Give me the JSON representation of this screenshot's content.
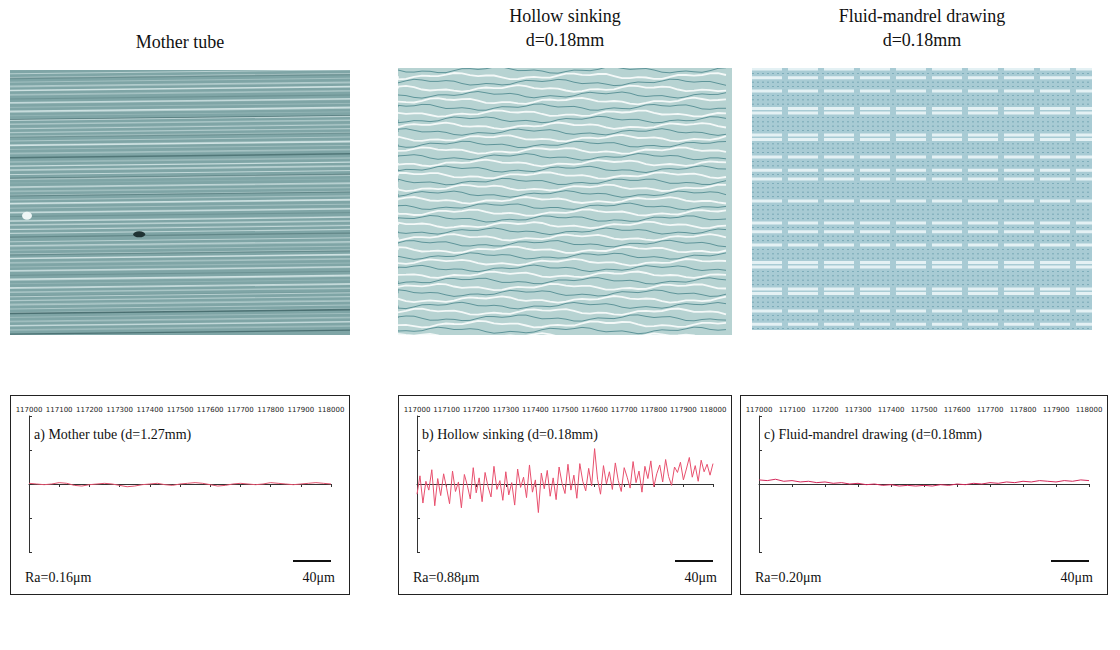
{
  "columns": [
    {
      "heading": "Mother tube"
    },
    {
      "heading": "Hollow sinking",
      "subheading": "d=0.18mm"
    },
    {
      "heading": "Fluid-mandrel drawing",
      "subheading": "d=0.18mm"
    }
  ],
  "chart_data": [
    {
      "type": "line",
      "title": "a) Mother tube (d=1.27mm)",
      "color": "#e0506c",
      "x": [
        117000,
        117025,
        117050,
        117075,
        117100,
        117125,
        117150,
        117175,
        117200,
        117225,
        117250,
        117275,
        117300,
        117325,
        117350,
        117375,
        117400,
        117425,
        117450,
        117475,
        117500,
        117525,
        117550,
        117575,
        117600,
        117625,
        117650,
        117675,
        117700,
        117725,
        117750,
        117775,
        117800,
        117825,
        117850,
        117875,
        117900,
        117925,
        117950,
        117975,
        118000
      ],
      "values": [
        0.1,
        0.0,
        -0.1,
        0.0,
        0.2,
        0.1,
        -0.2,
        -0.3,
        -0.1,
        0.0,
        0.1,
        0.0,
        -0.2,
        -0.4,
        -0.3,
        -0.1,
        0.0,
        0.1,
        -0.1,
        -0.2,
        0.0,
        0.1,
        0.2,
        0.1,
        -0.1,
        -0.3,
        -0.2,
        0.0,
        0.1,
        0.0,
        -0.1,
        0.0,
        0.2,
        0.1,
        0.0,
        -0.1,
        0.0,
        0.1,
        0.2,
        0.1,
        0.0
      ],
      "xlim": [
        117000,
        118000
      ],
      "xticks": [
        117000,
        117100,
        117200,
        117300,
        117400,
        117500,
        117600,
        117700,
        117800,
        117900,
        118000
      ],
      "ylim": [
        -10,
        10
      ],
      "yticks": [
        -10,
        -5,
        0,
        5,
        10
      ],
      "tick_labels": "x",
      "grid": false,
      "annotations": [
        "Ra=0.16μm",
        "40μm"
      ]
    },
    {
      "type": "line",
      "title": "b) Hollow sinking (d=0.18mm)",
      "color": "#e8506e",
      "x": [
        117000,
        117010,
        117020,
        117030,
        117040,
        117050,
        117060,
        117070,
        117080,
        117090,
        117100,
        117110,
        117120,
        117130,
        117140,
        117150,
        117160,
        117170,
        117180,
        117190,
        117200,
        117210,
        117220,
        117230,
        117240,
        117250,
        117260,
        117270,
        117280,
        117290,
        117300,
        117310,
        117320,
        117330,
        117340,
        117350,
        117360,
        117370,
        117380,
        117390,
        117400,
        117410,
        117420,
        117430,
        117440,
        117450,
        117460,
        117470,
        117480,
        117490,
        117500,
        117510,
        117520,
        117530,
        117540,
        117550,
        117560,
        117570,
        117580,
        117590,
        117600,
        117610,
        117620,
        117630,
        117640,
        117650,
        117660,
        117670,
        117680,
        117690,
        117700,
        117710,
        117720,
        117730,
        117740,
        117750,
        117760,
        117770,
        117780,
        117790,
        117800,
        117810,
        117820,
        117830,
        117840,
        117850,
        117860,
        117870,
        117880,
        117890,
        117900,
        117910,
        117920,
        117930,
        117940,
        117950,
        117960,
        117970,
        117980,
        117990,
        118000
      ],
      "values": [
        -1.5,
        1.2,
        -2.8,
        0.4,
        -0.9,
        2.1,
        -3.2,
        0.8,
        -1.7,
        1.5,
        -0.6,
        -2.9,
        1.9,
        -1.1,
        0.3,
        -3.5,
        1.4,
        -0.2,
        -2.2,
        2.4,
        -1.3,
        0.9,
        -2.6,
        1.7,
        -0.4,
        -1.9,
        2.6,
        -0.8,
        0.5,
        -2.4,
        1.8,
        -1.6,
        0.2,
        -3.1,
        2.2,
        -0.5,
        1.0,
        -2.0,
        2.8,
        -1.2,
        0.6,
        -4.2,
        1.6,
        -0.7,
        2.0,
        -1.8,
        0.9,
        -2.3,
        2.5,
        0.1,
        -1.4,
        2.9,
        -0.9,
        1.3,
        -2.1,
        3.0,
        0.4,
        -1.0,
        2.3,
        -0.3,
        5.2,
        0.7,
        -1.5,
        2.7,
        0.0,
        1.8,
        -0.8,
        3.1,
        0.5,
        -1.1,
        2.4,
        1.0,
        -0.6,
        3.3,
        0.2,
        1.9,
        -1.2,
        2.6,
        0.8,
        3.4,
        -0.4,
        1.5,
        2.8,
        0.3,
        3.6,
        1.1,
        -0.2,
        2.5,
        1.7,
        3.2,
        0.6,
        2.2,
        3.9,
        1.0,
        2.7,
        0.4,
        3.5,
        1.8,
        2.9,
        1.3,
        3.0
      ],
      "xlim": [
        117000,
        118000
      ],
      "xticks": [
        117000,
        117100,
        117200,
        117300,
        117400,
        117500,
        117600,
        117700,
        117800,
        117900,
        118000
      ],
      "ylim": [
        -10,
        10
      ],
      "yticks": [
        -10,
        -5,
        0,
        5,
        10
      ],
      "tick_labels": "x",
      "grid": false,
      "annotations": [
        "Ra=0.88μm",
        "40μm"
      ]
    },
    {
      "type": "line",
      "title": "c) Fluid-mandrel drawing (d=0.18mm)",
      "color": "#d4285a",
      "x": [
        117000,
        117025,
        117050,
        117075,
        117100,
        117125,
        117150,
        117175,
        117200,
        117225,
        117250,
        117275,
        117300,
        117325,
        117350,
        117375,
        117400,
        117425,
        117450,
        117475,
        117500,
        117525,
        117550,
        117575,
        117600,
        117625,
        117650,
        117675,
        117700,
        117725,
        117750,
        117775,
        117800,
        117825,
        117850,
        117875,
        117900,
        117925,
        117950,
        117975,
        118000
      ],
      "values": [
        0.6,
        0.5,
        0.7,
        0.4,
        0.5,
        0.3,
        0.4,
        0.2,
        0.3,
        0.1,
        0.2,
        0.0,
        0.1,
        -0.1,
        0.0,
        -0.2,
        -0.1,
        -0.3,
        -0.2,
        -0.3,
        -0.2,
        -0.3,
        -0.1,
        -0.2,
        0.0,
        -0.1,
        0.1,
        0.0,
        0.2,
        0.1,
        0.3,
        0.2,
        0.4,
        0.3,
        0.5,
        0.4,
        0.3,
        0.5,
        0.4,
        0.6,
        0.5
      ],
      "xlim": [
        117000,
        118000
      ],
      "xticks": [
        117000,
        117100,
        117200,
        117300,
        117400,
        117500,
        117600,
        117700,
        117800,
        117900,
        118000
      ],
      "ylim": [
        -10,
        10
      ],
      "yticks": [
        -10,
        -5,
        0,
        5,
        10
      ],
      "tick_labels": "x",
      "grid": false,
      "annotations": [
        "Ra=0.20μm",
        "40μm"
      ]
    }
  ]
}
